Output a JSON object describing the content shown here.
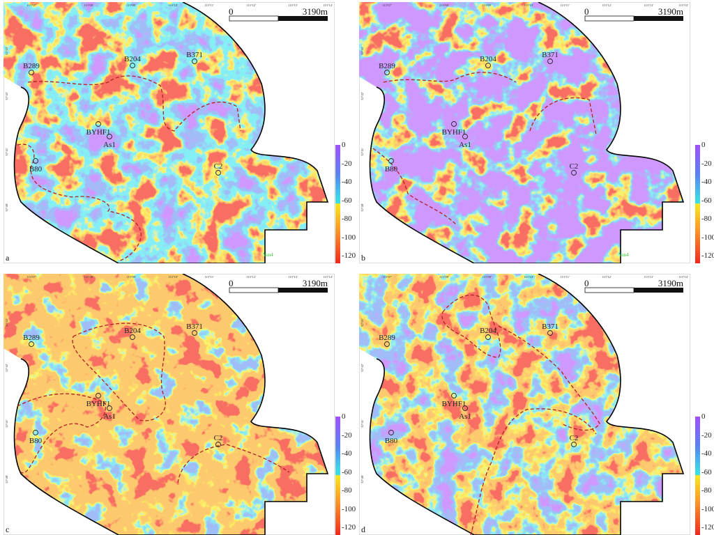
{
  "figure": {
    "longitude_labels": [
      "113°07'",
      "113°08'",
      "113°09'",
      "113°10'",
      "113°11'",
      "113°12'",
      "113°13'",
      "113°14'"
    ],
    "latitude_labels": [
      "32°43'",
      "32°42'",
      "32°41'",
      "32°40'"
    ],
    "scale_bar": {
      "start": "0",
      "end": "3190m"
    },
    "colorbar": {
      "ticks": [
        "0",
        "-20",
        "-40",
        "-60",
        "-80",
        "-100",
        "-120"
      ],
      "colors": [
        "#a050ff",
        "#5a82f0",
        "#3cdce6",
        "#fae61e",
        "#fa9628",
        "#f02820"
      ]
    },
    "boundary_color": "#000000",
    "dashed_outline_color": "#b02020",
    "panels": [
      {
        "letter": "a",
        "extra_label": "Yun4",
        "wells": [
          "B289",
          "B204",
          "B371",
          "BYHF1",
          "As1",
          "B80",
          "C2"
        ]
      },
      {
        "letter": "b",
        "extra_label": "Yun4",
        "wells": [
          "B289",
          "B204",
          "B371",
          "BYHF1",
          "As1",
          "B80",
          "C2"
        ]
      },
      {
        "letter": "c",
        "wells": [
          "B289",
          "B204",
          "B371",
          "BYHF1",
          "As1",
          "B80",
          "C2"
        ]
      },
      {
        "letter": "d",
        "wells": [
          "B289",
          "B204",
          "B371",
          "BYHF1",
          "As1",
          "B80",
          "C2"
        ]
      }
    ]
  }
}
